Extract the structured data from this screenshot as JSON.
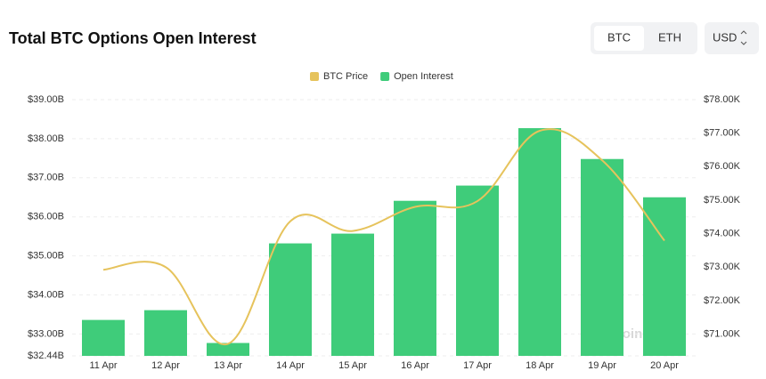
{
  "ui": {
    "tabs": [
      "BTC",
      "ETH"
    ],
    "currency": "USD",
    "watermark": "coinglass"
  },
  "chart_data": {
    "type": "bar-line",
    "title": "Total BTC Options Open Interest",
    "categories": [
      "11 Apr",
      "12 Apr",
      "13 Apr",
      "14 Apr",
      "15 Apr",
      "16 Apr",
      "17 Apr",
      "18 Apr",
      "19 Apr",
      "20 Apr"
    ],
    "series": [
      {
        "name": "BTC Price",
        "type": "line",
        "axis": "y2",
        "color": "#e6c35c",
        "values": [
          72.92,
          73.0,
          70.71,
          74.37,
          74.08,
          74.8,
          74.97,
          77.07,
          76.19,
          73.79
        ]
      },
      {
        "name": "Open Interest",
        "type": "bar",
        "axis": "y",
        "color": "#3fcc7a",
        "values": [
          33.36,
          33.61,
          32.77,
          35.32,
          35.57,
          36.41,
          36.8,
          38.27,
          37.48,
          36.5
        ]
      }
    ],
    "ylim": [
      32.44,
      39.0
    ],
    "yticks": [
      {
        "value": 32.44,
        "label": "$32.44B"
      },
      {
        "value": 33,
        "label": "$33.00B"
      },
      {
        "value": 34,
        "label": "$34.00B"
      },
      {
        "value": 35,
        "label": "$35.00B"
      },
      {
        "value": 36,
        "label": "$36.00B"
      },
      {
        "value": 37,
        "label": "$37.00B"
      },
      {
        "value": 38,
        "label": "$38.00B"
      },
      {
        "value": 39,
        "label": "$39.00B"
      }
    ],
    "y2lim": [
      70.35,
      78.0
    ],
    "y2ticks": [
      {
        "value": 71,
        "label": "$71.00K"
      },
      {
        "value": 72,
        "label": "$72.00K"
      },
      {
        "value": 73,
        "label": "$73.00K"
      },
      {
        "value": 74,
        "label": "$74.00K"
      },
      {
        "value": 75,
        "label": "$75.00K"
      },
      {
        "value": 76,
        "label": "$76.00K"
      },
      {
        "value": 77,
        "label": "$77.00K"
      },
      {
        "value": 78,
        "label": "$78.00K"
      }
    ],
    "grid": true,
    "legend": "top"
  }
}
